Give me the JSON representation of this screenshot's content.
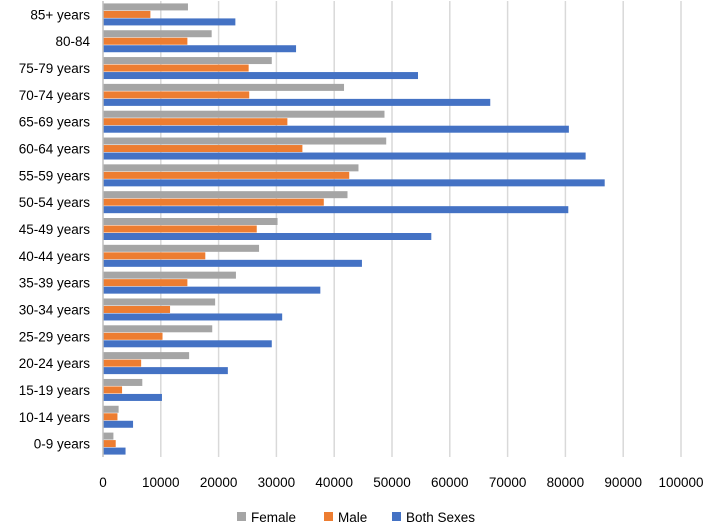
{
  "chart_data": {
    "type": "bar",
    "orientation": "horizontal",
    "categories": [
      "85+ years",
      "80-84",
      "75-79 years",
      "70-74 years",
      "65-69 years",
      "60-64 years",
      "55-59 years",
      "50-54 years",
      "45-49 years",
      "40-44 years",
      "35-39 years",
      "30-34 years",
      "25-29 years",
      "20-24 years",
      "15-19 years",
      "10-14 years",
      "0-9 years"
    ],
    "series": [
      {
        "name": "Female",
        "color": "#a5a5a5",
        "values": [
          14700,
          18800,
          29200,
          41700,
          48700,
          49000,
          44200,
          42300,
          30200,
          27000,
          23000,
          19400,
          18900,
          14900,
          6800,
          2700,
          1800
        ]
      },
      {
        "name": "Male",
        "color": "#ed7d31",
        "values": [
          8200,
          14600,
          25200,
          25300,
          31900,
          34500,
          42600,
          38200,
          26600,
          17700,
          14600,
          11600,
          10300,
          6600,
          3300,
          2500,
          2200
        ]
      },
      {
        "name": "Both Sexes",
        "color": "#4472c4",
        "values": [
          22900,
          33400,
          54500,
          67000,
          80600,
          83500,
          86800,
          80500,
          56800,
          44800,
          37600,
          31000,
          29200,
          21600,
          10200,
          5200,
          3900
        ]
      }
    ],
    "xlim": [
      0,
      100000
    ],
    "xticks": [
      "0",
      "10000",
      "20000",
      "30000",
      "40000",
      "50000",
      "60000",
      "70000",
      "80000",
      "90000",
      "100000"
    ],
    "grid": true,
    "legend_position": "bottom",
    "title": "",
    "xlabel": "",
    "ylabel": ""
  }
}
